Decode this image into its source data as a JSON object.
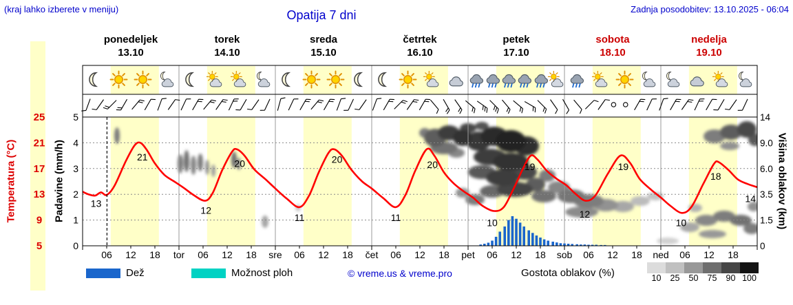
{
  "header": {
    "hint": "(kraj lahko izberete v meniju)",
    "title": "Opatija 7 dni",
    "updated": "Zadnja posodobitev: 13.10.2025 - 06:04"
  },
  "axes": {
    "temp_label": "Temperatura (°C)",
    "temp_ticks": [
      "25",
      "21",
      "17",
      "13",
      "9",
      "5"
    ],
    "precip_label": "Padavine (mm/h)",
    "precip_ticks": [
      "5",
      "4",
      "3",
      "2",
      "1",
      "0"
    ],
    "cloud_label": "Višina oblakov (km)",
    "cloud_ticks": [
      "14",
      "9.0",
      "6.0",
      "3.5",
      "1.5",
      "0"
    ]
  },
  "days": [
    {
      "name": "ponedeljek",
      "date": "13.10",
      "color": "#000000",
      "icons": [
        "moon",
        "sun",
        "sun",
        "moon-cloud"
      ]
    },
    {
      "name": "torek",
      "date": "14.10",
      "color": "#000000",
      "icons": [
        "moon",
        "sun-cloud",
        "sun-cloud",
        "moon-cloud"
      ]
    },
    {
      "name": "sreda",
      "date": "15.10",
      "color": "#000000",
      "icons": [
        "moon",
        "sun",
        "sun",
        "moon"
      ]
    },
    {
      "name": "četrtek",
      "date": "16.10",
      "color": "#000000",
      "icons": [
        "moon",
        "sun",
        "sun-cloud",
        "cloud"
      ]
    },
    {
      "name": "petek",
      "date": "17.10",
      "color": "#000000",
      "icons": [
        "rain",
        "rain",
        "rain",
        "rain",
        "rain",
        "sun-cloud"
      ]
    },
    {
      "name": "sobota",
      "date": "18.10",
      "color": "#cc0000",
      "icons": [
        "rain",
        "sun-cloud",
        "sun",
        "moon-cloud"
      ]
    },
    {
      "name": "nedelja",
      "date": "19.10",
      "color": "#cc0000",
      "icons": [
        "moon-cloud",
        "cloud",
        "sun-cloud",
        "moon-cloud"
      ]
    }
  ],
  "time_ticks": [
    "06",
    "12",
    "18"
  ],
  "day_abbrevs": [
    "tor",
    "sre",
    "čet",
    "pet",
    "sob",
    "ned"
  ],
  "legend": {
    "rain_label": "Dež",
    "rain_color": "#1a66cc",
    "showers_label": "Možnost ploh",
    "showers_color": "#00d2c3",
    "copyright": "© vreme.us & vreme.pro",
    "cloud_density_label": "Gostota oblakov (%)",
    "cloud_scale": [
      {
        "v": "10",
        "c": "#dcdcdc"
      },
      {
        "v": "25",
        "c": "#c0c0c0"
      },
      {
        "v": "50",
        "c": "#989898"
      },
      {
        "v": "75",
        "c": "#6e6e6e"
      },
      {
        "v": "90",
        "c": "#464646"
      },
      {
        "v": "100",
        "c": "#141414"
      }
    ]
  },
  "colors": {
    "accent_blue": "#0000cc",
    "axis_red": "#dd0000",
    "temp_line": "#ff0000",
    "day_band": "#ffffc8",
    "rain_bar": "#1a66cc",
    "grid": "#888888"
  },
  "chart_data": {
    "type": "line",
    "title": "Opatija 7 dni",
    "x_unit": "days (0 = Monday 13.10 00:00, span 7 days)",
    "temp_axis": {
      "label": "Temperatura (°C)",
      "range": [
        5,
        25
      ],
      "ticks": [
        25,
        21,
        17,
        13,
        9,
        5
      ]
    },
    "precip_axis": {
      "label": "Padavine (mm/h)",
      "range": [
        0,
        5
      ],
      "ticks": [
        5,
        4,
        3,
        2,
        1,
        0
      ]
    },
    "cloud_axis": {
      "label": "Višina oblakov (km)",
      "ticks": [
        "14",
        "9.0",
        "6.0",
        "3.5",
        "1.5",
        "0"
      ]
    },
    "now_t": 0.253,
    "day_start_hour": 7,
    "day_end_hour": 19,
    "temperature_c": [
      [
        0,
        13.4
      ],
      [
        0.06,
        13.0
      ],
      [
        0.13,
        12.8
      ],
      [
        0.19,
        13.3
      ],
      [
        0.25,
        12.9
      ],
      [
        0.33,
        14.3
      ],
      [
        0.45,
        18.2
      ],
      [
        0.54,
        20.6
      ],
      [
        0.6,
        21.0
      ],
      [
        0.67,
        19.8
      ],
      [
        0.75,
        17.8
      ],
      [
        0.85,
        16.0
      ],
      [
        0.95,
        15.0
      ],
      [
        1.05,
        14.0
      ],
      [
        1.15,
        12.9
      ],
      [
        1.27,
        12.0
      ],
      [
        1.35,
        13.2
      ],
      [
        1.45,
        16.8
      ],
      [
        1.55,
        19.6
      ],
      [
        1.6,
        20.0
      ],
      [
        1.68,
        19.0
      ],
      [
        1.78,
        16.9
      ],
      [
        1.9,
        15.3
      ],
      [
        2.0,
        13.9
      ],
      [
        2.12,
        12.3
      ],
      [
        2.25,
        11.0
      ],
      [
        2.35,
        12.8
      ],
      [
        2.45,
        16.4
      ],
      [
        2.55,
        19.4
      ],
      [
        2.61,
        20.0
      ],
      [
        2.69,
        19.0
      ],
      [
        2.79,
        16.8
      ],
      [
        2.9,
        15.0
      ],
      [
        3.0,
        13.9
      ],
      [
        3.12,
        12.4
      ],
      [
        3.25,
        11.0
      ],
      [
        3.35,
        12.9
      ],
      [
        3.45,
        16.6
      ],
      [
        3.57,
        20.0
      ],
      [
        3.65,
        19.0
      ],
      [
        3.75,
        16.4
      ],
      [
        3.85,
        14.7
      ],
      [
        3.95,
        13.5
      ],
      [
        4.05,
        12.5
      ],
      [
        4.15,
        11.2
      ],
      [
        4.27,
        10.4
      ],
      [
        4.37,
        11.0
      ],
      [
        4.47,
        13.8
      ],
      [
        4.57,
        17.0
      ],
      [
        4.65,
        19.0
      ],
      [
        4.72,
        18.4
      ],
      [
        4.82,
        16.6
      ],
      [
        4.92,
        15.4
      ],
      [
        5.02,
        14.4
      ],
      [
        5.12,
        13.0
      ],
      [
        5.22,
        12.0
      ],
      [
        5.32,
        12.8
      ],
      [
        5.45,
        16.2
      ],
      [
        5.58,
        19.0
      ],
      [
        5.68,
        17.9
      ],
      [
        5.78,
        15.4
      ],
      [
        5.9,
        13.7
      ],
      [
        6.0,
        12.5
      ],
      [
        6.1,
        11.2
      ],
      [
        6.22,
        10.1
      ],
      [
        6.32,
        11.1
      ],
      [
        6.44,
        14.6
      ],
      [
        6.55,
        17.7
      ],
      [
        6.6,
        18.0
      ],
      [
        6.7,
        16.8
      ],
      [
        6.8,
        15.3
      ],
      [
        6.9,
        14.6
      ],
      [
        7.0,
        14.1
      ]
    ],
    "temp_point_labels": [
      {
        "t": 0.14,
        "v": 11.6,
        "s": "13"
      },
      {
        "t": 0.62,
        "v": 18.8,
        "s": "21"
      },
      {
        "t": 1.28,
        "v": 10.5,
        "s": "12"
      },
      {
        "t": 1.63,
        "v": 17.8,
        "s": "20"
      },
      {
        "t": 2.25,
        "v": 9.4,
        "s": "11"
      },
      {
        "t": 2.64,
        "v": 18.4,
        "s": "20"
      },
      {
        "t": 3.25,
        "v": 9.4,
        "s": "11"
      },
      {
        "t": 3.63,
        "v": 17.6,
        "s": "20"
      },
      {
        "t": 4.25,
        "v": 8.6,
        "s": "10"
      },
      {
        "t": 4.64,
        "v": 17.3,
        "s": "19"
      },
      {
        "t": 5.21,
        "v": 9.9,
        "s": "12"
      },
      {
        "t": 5.61,
        "v": 17.3,
        "s": "19"
      },
      {
        "t": 6.21,
        "v": 8.6,
        "s": "10"
      },
      {
        "t": 6.57,
        "v": 15.8,
        "s": "18"
      },
      {
        "t": 6.93,
        "v": 12.3,
        "s": "14"
      }
    ],
    "precip_mm_h": [
      [
        4.13,
        0.05
      ],
      [
        4.17,
        0.08
      ],
      [
        4.21,
        0.12
      ],
      [
        4.25,
        0.2
      ],
      [
        4.29,
        0.35
      ],
      [
        4.33,
        0.55
      ],
      [
        4.38,
        0.75
      ],
      [
        4.42,
        1.0
      ],
      [
        4.46,
        1.15
      ],
      [
        4.5,
        1.05
      ],
      [
        4.54,
        0.9
      ],
      [
        4.58,
        0.75
      ],
      [
        4.63,
        0.6
      ],
      [
        4.67,
        0.5
      ],
      [
        4.71,
        0.4
      ],
      [
        4.75,
        0.32
      ],
      [
        4.79,
        0.25
      ],
      [
        4.83,
        0.2
      ],
      [
        4.88,
        0.16
      ],
      [
        4.92,
        0.13
      ],
      [
        4.96,
        0.1
      ],
      [
        5.0,
        0.09
      ],
      [
        5.04,
        0.08
      ],
      [
        5.08,
        0.07
      ],
      [
        5.13,
        0.06
      ],
      [
        5.17,
        0.05
      ],
      [
        5.21,
        0.05
      ],
      [
        5.25,
        0.04
      ],
      [
        5.29,
        0.04
      ],
      [
        5.33,
        0.04
      ],
      [
        5.38,
        0.03
      ],
      [
        5.42,
        0.03
      ]
    ],
    "cloud_blobs": [
      [
        170,
        197,
        4,
        12,
        55
      ],
      [
        262,
        238,
        4,
        14,
        55
      ],
      [
        271,
        234,
        4,
        16,
        60
      ],
      [
        281,
        240,
        4,
        14,
        50
      ],
      [
        291,
        236,
        4,
        13,
        55
      ],
      [
        301,
        243,
        3,
        11,
        45
      ],
      [
        310,
        248,
        3,
        9,
        40
      ],
      [
        340,
        232,
        4,
        12,
        60
      ],
      [
        347,
        238,
        3,
        9,
        50
      ],
      [
        385,
        322,
        5,
        9,
        35
      ],
      [
        433,
        302,
        4,
        5,
        20
      ],
      [
        617,
        193,
        8,
        7,
        55
      ],
      [
        632,
        200,
        16,
        13,
        70
      ],
      [
        652,
        193,
        16,
        11,
        85
      ],
      [
        672,
        200,
        14,
        12,
        90
      ],
      [
        680,
        186,
        12,
        7,
        80
      ],
      [
        700,
        183,
        10,
        6,
        75
      ],
      [
        645,
        215,
        20,
        9,
        60
      ],
      [
        663,
        222,
        12,
        7,
        50
      ],
      [
        695,
        205,
        18,
        14,
        88
      ],
      [
        718,
        198,
        20,
        14,
        95
      ],
      [
        742,
        205,
        22,
        16,
        97
      ],
      [
        765,
        212,
        18,
        14,
        92
      ],
      [
        712,
        228,
        24,
        12,
        85
      ],
      [
        742,
        235,
        26,
        13,
        90
      ],
      [
        700,
        250,
        20,
        10,
        72
      ],
      [
        730,
        258,
        24,
        12,
        85
      ],
      [
        762,
        250,
        18,
        11,
        80
      ],
      [
        748,
        275,
        26,
        11,
        82
      ],
      [
        715,
        278,
        18,
        9,
        65
      ],
      [
        778,
        268,
        14,
        10,
        70
      ],
      [
        795,
        255,
        12,
        9,
        55
      ],
      [
        790,
        285,
        18,
        9,
        60
      ],
      [
        672,
        280,
        10,
        7,
        45
      ],
      [
        690,
        290,
        14,
        8,
        55
      ],
      [
        812,
        272,
        16,
        9,
        50
      ],
      [
        830,
        285,
        20,
        10,
        58
      ],
      [
        855,
        292,
        22,
        10,
        55
      ],
      [
        880,
        298,
        18,
        9,
        45
      ],
      [
        845,
        308,
        24,
        8,
        48
      ],
      [
        905,
        300,
        16,
        8,
        35
      ],
      [
        930,
        292,
        14,
        7,
        25
      ],
      [
        952,
        285,
        12,
        6,
        22
      ],
      [
        970,
        350,
        16,
        5,
        15
      ],
      [
        1038,
        198,
        16,
        10,
        55
      ],
      [
        1062,
        192,
        16,
        11,
        70
      ],
      [
        1085,
        188,
        14,
        12,
        80
      ],
      [
        1097,
        203,
        10,
        9,
        72
      ],
      [
        1060,
        212,
        14,
        6,
        45
      ],
      [
        1002,
        330,
        14,
        7,
        35
      ],
      [
        1026,
        320,
        16,
        8,
        50
      ],
      [
        1052,
        314,
        16,
        8,
        55
      ],
      [
        1076,
        320,
        16,
        8,
        60
      ],
      [
        1092,
        332,
        12,
        8,
        55
      ],
      [
        1035,
        340,
        20,
        6,
        42
      ],
      [
        1095,
        300,
        9,
        7,
        45
      ],
      [
        1010,
        302,
        10,
        6,
        30
      ]
    ],
    "wind_barbs": [
      [
        200,
        1
      ],
      [
        215,
        1
      ],
      [
        225,
        2
      ],
      [
        210,
        2
      ],
      [
        40,
        2
      ],
      [
        30,
        1
      ],
      [
        20,
        1
      ],
      [
        35,
        1
      ],
      [
        25,
        1
      ],
      [
        30,
        2
      ],
      [
        40,
        2
      ],
      [
        35,
        2
      ],
      [
        25,
        2
      ],
      [
        210,
        1
      ],
      [
        215,
        1
      ],
      [
        205,
        1
      ],
      [
        15,
        1
      ],
      [
        25,
        1
      ],
      [
        30,
        2
      ],
      [
        40,
        2
      ],
      [
        30,
        2
      ],
      [
        20,
        1
      ],
      [
        205,
        1
      ],
      [
        215,
        1
      ],
      [
        20,
        1
      ],
      [
        30,
        2
      ],
      [
        45,
        2
      ],
      [
        35,
        2
      ],
      [
        30,
        2
      ],
      [
        140,
        1
      ],
      [
        150,
        2
      ],
      [
        145,
        2
      ],
      [
        130,
        2
      ],
      [
        125,
        3
      ],
      [
        135,
        3
      ],
      [
        140,
        2
      ],
      [
        130,
        2
      ],
      [
        120,
        2
      ],
      [
        135,
        2
      ],
      [
        145,
        1
      ],
      [
        150,
        1
      ],
      [
        140,
        1
      ],
      [
        45,
        1
      ],
      [
        35,
        1
      ],
      null,
      null,
      [
        30,
        2
      ],
      [
        25,
        1
      ],
      [
        20,
        1
      ],
      [
        30,
        2
      ],
      [
        35,
        2
      ],
      [
        25,
        2
      ],
      [
        30,
        1
      ],
      [
        210,
        1
      ],
      [
        215,
        1
      ],
      [
        205,
        1
      ]
    ]
  }
}
